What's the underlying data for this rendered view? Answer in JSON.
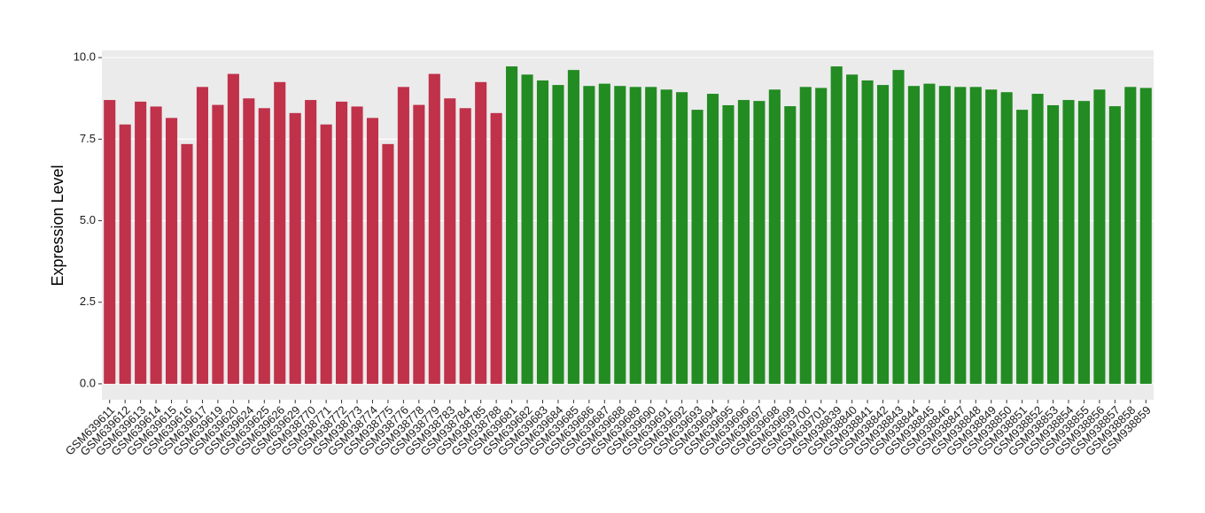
{
  "chart_data": {
    "type": "bar",
    "y_label": "Expression Level",
    "categories": [
      "GSM639611",
      "GSM639612",
      "GSM639613",
      "GSM639614",
      "GSM639615",
      "GSM639616",
      "GSM639617",
      "GSM639619",
      "GSM639620",
      "GSM639624",
      "GSM639625",
      "GSM639626",
      "GSM639629",
      "GSM938770",
      "GSM938771",
      "GSM938772",
      "GSM938773",
      "GSM938774",
      "GSM938775",
      "GSM938776",
      "GSM938778",
      "GSM938779",
      "GSM938783",
      "GSM938784",
      "GSM938785",
      "GSM938788",
      "GSM639681",
      "GSM639682",
      "GSM639683",
      "GSM639684",
      "GSM639685",
      "GSM639686",
      "GSM639687",
      "GSM639688",
      "GSM639689",
      "GSM639690",
      "GSM639691",
      "GSM639692",
      "GSM639693",
      "GSM639694",
      "GSM639695",
      "GSM639696",
      "GSM639697",
      "GSM639698",
      "GSM639699",
      "GSM639700",
      "GSM639701",
      "GSM938839",
      "GSM938840",
      "GSM938841",
      "GSM938842",
      "GSM938843",
      "GSM938844",
      "GSM938845",
      "GSM938846",
      "GSM938847",
      "GSM938848",
      "GSM938849",
      "GSM938850",
      "GSM938851",
      "GSM938852",
      "GSM938853",
      "GSM938854",
      "GSM938855",
      "GSM938856",
      "GSM938857",
      "GSM938858",
      "GSM938859"
    ],
    "values": [
      8.7,
      7.95,
      8.65,
      8.5,
      8.15,
      7.35,
      9.1,
      8.55,
      9.5,
      8.75,
      8.45,
      9.25,
      8.3,
      8.7,
      7.95,
      8.65,
      8.5,
      8.15,
      7.35,
      9.1,
      8.55,
      9.5,
      8.75,
      8.45,
      9.25,
      8.3,
      9.73,
      9.48,
      9.3,
      9.16,
      9.62,
      9.13,
      9.2,
      9.13,
      9.1,
      9.1,
      9.02,
      8.94,
      8.4,
      8.89,
      8.54,
      8.7,
      8.67,
      9.02,
      8.51,
      9.1,
      9.07,
      9.73,
      9.48,
      9.3,
      9.16,
      9.62,
      9.13,
      9.2,
      9.13,
      9.1,
      9.1,
      9.02,
      8.94,
      8.4,
      8.89,
      8.54,
      8.7,
      8.67,
      9.02,
      8.51,
      9.1,
      9.07
    ],
    "colors": [
      "#c0314a",
      "#c0314a",
      "#c0314a",
      "#c0314a",
      "#c0314a",
      "#c0314a",
      "#c0314a",
      "#c0314a",
      "#c0314a",
      "#c0314a",
      "#c0314a",
      "#c0314a",
      "#c0314a",
      "#c0314a",
      "#c0314a",
      "#c0314a",
      "#c0314a",
      "#c0314a",
      "#c0314a",
      "#c0314a",
      "#c0314a",
      "#c0314a",
      "#c0314a",
      "#c0314a",
      "#c0314a",
      "#c0314a",
      "#228b22",
      "#228b22",
      "#228b22",
      "#228b22",
      "#228b22",
      "#228b22",
      "#228b22",
      "#228b22",
      "#228b22",
      "#228b22",
      "#228b22",
      "#228b22",
      "#228b22",
      "#228b22",
      "#228b22",
      "#228b22",
      "#228b22",
      "#228b22",
      "#228b22",
      "#228b22",
      "#228b22",
      "#228b22",
      "#228b22",
      "#228b22",
      "#228b22",
      "#228b22",
      "#228b22",
      "#228b22",
      "#228b22",
      "#228b22",
      "#228b22",
      "#228b22",
      "#228b22",
      "#228b22",
      "#228b22",
      "#228b22",
      "#228b22",
      "#228b22",
      "#228b22",
      "#228b22",
      "#228b22",
      "#228b22"
    ],
    "ylim": [
      -0.49,
      10.22
    ],
    "yticks": [
      {
        "value": 0,
        "label": "0.0"
      },
      2.5,
      {
        "value": 5,
        "label": "5.0"
      },
      7.5,
      {
        "value": 10,
        "label": "10.0"
      }
    ],
    "grid": true
  }
}
